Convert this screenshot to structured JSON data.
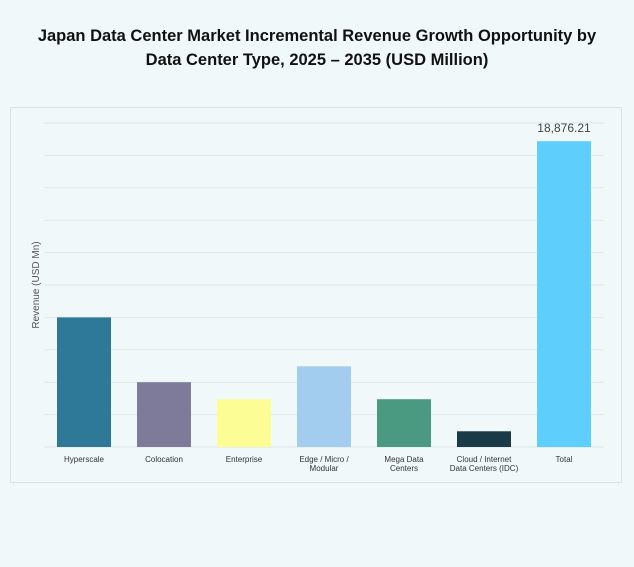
{
  "title_line1": "Japan Data Center Market Incremental Revenue Growth Opportunity by",
  "title_line2": "Data Center Type, 2025 – 2035 (USD Million)",
  "chart_data": {
    "type": "bar",
    "title": "Japan Data Center Market Incremental Revenue Growth Opportunity by Data Center Type, 2025 – 2035 (USD Million)",
    "xlabel": "",
    "ylabel": "Revenue (USD Mn)",
    "ylim": [
      0,
      20000
    ],
    "grid": true,
    "categories": [
      [
        "Hyperscale"
      ],
      [
        "Colocation"
      ],
      [
        "Enterprise"
      ],
      [
        "Edge / Micro /",
        "Modular"
      ],
      [
        "Mega Data",
        "Centers"
      ],
      [
        "Cloud / Internet",
        "Data Centers (IDC)"
      ],
      [
        "Total"
      ]
    ],
    "values": [
      8000,
      4000,
      2950,
      4980,
      2950,
      970,
      18876.21
    ],
    "colors": [
      "#2e7898",
      "#7d7a9a",
      "#fdfd96",
      "#a3cdee",
      "#4a9a82",
      "#1b3a48",
      "#5ecffd"
    ],
    "data_labels": [
      "",
      "",
      "",
      "",
      "",
      "",
      "18,876.21"
    ]
  }
}
